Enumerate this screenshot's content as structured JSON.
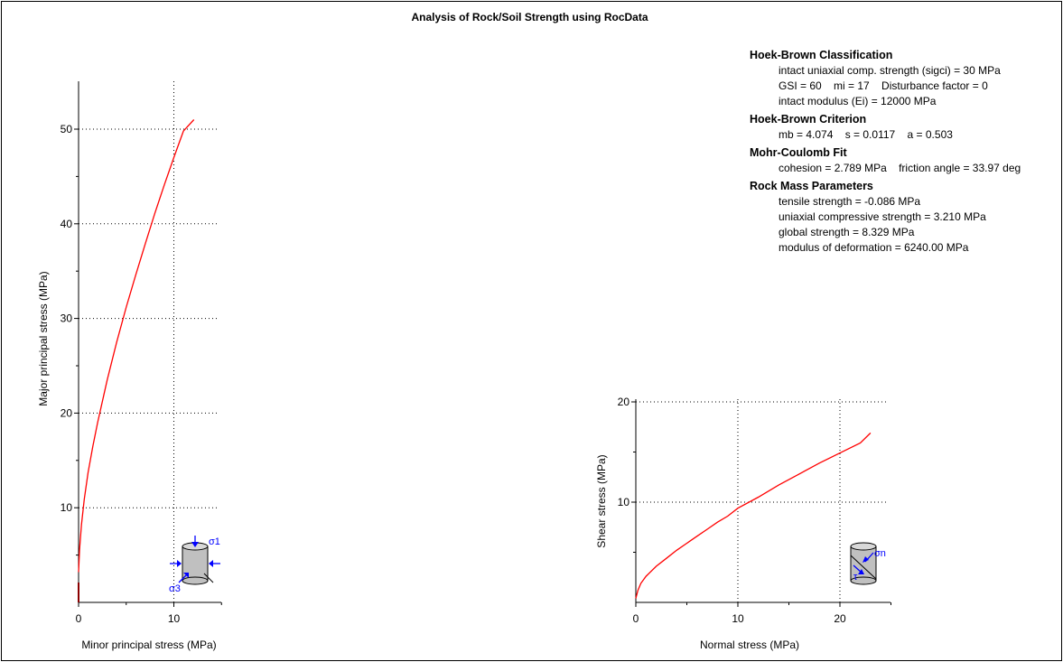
{
  "title": "Analysis of Rock/Soil Strength using RocData",
  "info": {
    "sections": [
      {
        "heading": "Hoek-Brown Classification",
        "lines": [
          "intact uniaxial comp. strength (sigci) = 30 MPa",
          "GSI = 60    mi = 17    Disturbance factor = 0",
          "intact modulus (Ei) = 12000 MPa"
        ]
      },
      {
        "heading": "Hoek-Brown Criterion",
        "lines": [
          "mb = 4.074    s = 0.0117    a = 0.503"
        ]
      },
      {
        "heading": "Mohr-Coulomb Fit",
        "lines": [
          "cohesion = 2.789 MPa    friction angle = 33.97 deg"
        ]
      },
      {
        "heading": "Rock Mass Parameters",
        "lines": [
          "tensile strength = -0.086 MPa",
          "uniaxial compressive strength = 3.210 MPa",
          "global strength = 8.329 MPa",
          "modulus of deformation = 6240.00 MPa"
        ]
      }
    ]
  },
  "icons": {
    "principal": {
      "sigma1": "σ1",
      "sigma3": "σ3"
    },
    "shear": {
      "sigman": "σn",
      "tau": "τ"
    }
  },
  "chart_data": [
    {
      "type": "line",
      "xlabel": "Minor principal stress (MPa)",
      "ylabel": "Major principal stress (MPa)",
      "xlim": [
        0,
        15
      ],
      "ylim": [
        0,
        55
      ],
      "x_ticks": [
        0,
        10
      ],
      "y_ticks": [
        10,
        20,
        30,
        40,
        50
      ],
      "grid": "dotted",
      "line_color": "#ff0000",
      "series": [
        {
          "x": [
            0,
            0.1,
            0.3,
            0.6,
            1,
            1.5,
            2,
            3,
            4,
            5,
            6,
            7,
            8,
            9,
            10,
            11,
            12.1
          ],
          "y": [
            3.2,
            5.6,
            8.2,
            10.9,
            13.7,
            16.5,
            19.0,
            23.5,
            27.5,
            31.2,
            34.6,
            37.9,
            41.1,
            44.1,
            47.0,
            49.8,
            51.0
          ]
        }
      ]
    },
    {
      "type": "line",
      "xlabel": "Normal stress (MPa)",
      "ylabel": "Shear stress (MPa)",
      "xlim": [
        0,
        25
      ],
      "ylim": [
        0,
        20
      ],
      "x_ticks": [
        0,
        10,
        20
      ],
      "y_ticks": [
        10,
        20
      ],
      "grid": "dotted",
      "line_color": "#ff0000",
      "series": [
        {
          "x": [
            0,
            0.2,
            0.5,
            1,
            2,
            3,
            4,
            5,
            6,
            7,
            8,
            9,
            10,
            12,
            14,
            16,
            18,
            20,
            22,
            23
          ],
          "y": [
            0.4,
            1.2,
            1.9,
            2.6,
            3.6,
            4.4,
            5.2,
            5.9,
            6.6,
            7.3,
            8.0,
            8.6,
            9.4,
            10.5,
            11.7,
            12.8,
            13.9,
            14.9,
            15.9,
            16.9
          ]
        }
      ]
    }
  ]
}
